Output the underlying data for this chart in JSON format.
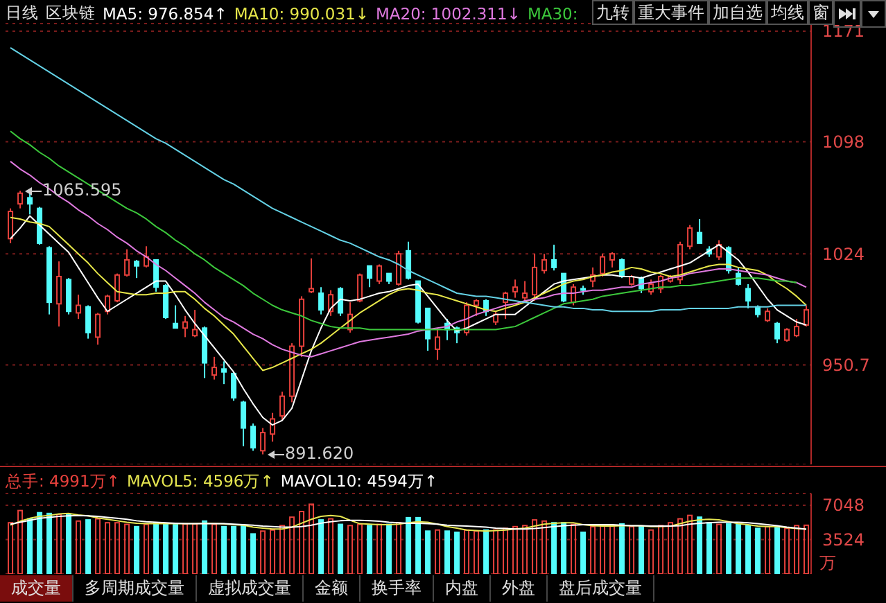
{
  "chart_data": [
    {
      "type": "candlestick",
      "title": "区块链",
      "subtitle": "日线",
      "categories": [
        null,
        null,
        null,
        null,
        null,
        null,
        null,
        null,
        null,
        null,
        null,
        null,
        null,
        null,
        null,
        null,
        null,
        null,
        null,
        null,
        null,
        null,
        null,
        null,
        null,
        null,
        null,
        null,
        null,
        null,
        null,
        null,
        null,
        null,
        null,
        null,
        null,
        null,
        null,
        null,
        null,
        null,
        null,
        null,
        null,
        null,
        null,
        null,
        null,
        null,
        null,
        null,
        null,
        null,
        null,
        null,
        null,
        null,
        null,
        null,
        null,
        null,
        null,
        null,
        null,
        null,
        null,
        null,
        null,
        null,
        null,
        null,
        null,
        null,
        null,
        null,
        null,
        null,
        null,
        null,
        null,
        null,
        null
      ],
      "ohlc": [
        [
          1034,
          1054,
          1031,
          1052
        ],
        [
          1057,
          1065.595,
          1054,
          1064
        ],
        [
          1061,
          1064,
          1050,
          1057
        ],
        [
          1054,
          1055,
          1030,
          1031
        ],
        [
          1028,
          1029,
          984,
          992
        ],
        [
          991,
          1019,
          976,
          1009
        ],
        [
          1007,
          1008,
          984,
          986
        ],
        [
          985,
          997,
          981,
          990
        ],
        [
          989,
          990,
          968,
          972
        ],
        [
          969,
          985,
          964,
          984
        ],
        [
          986,
          997,
          984,
          996
        ],
        [
          993,
          1011,
          992,
          1010
        ],
        [
          1010,
          1027,
          1009,
          1020
        ],
        [
          1019,
          1020,
          1008,
          1016
        ],
        [
          1016,
          1029,
          1015,
          1022
        ],
        [
          1020,
          1020,
          999,
          1002
        ],
        [
          1003,
          1004,
          981,
          982
        ],
        [
          978,
          990,
          975,
          975
        ],
        [
          975,
          983,
          969,
          979
        ],
        [
          970,
          987,
          969,
          974
        ],
        [
          975,
          976,
          942,
          952
        ],
        [
          944,
          956,
          941,
          949
        ],
        [
          948,
          953,
          938,
          946
        ],
        [
          945,
          946,
          927,
          929
        ],
        [
          926,
          927,
          897,
          909
        ],
        [
          910,
          912,
          894,
          896
        ],
        [
          894,
          909,
          891.62,
          906
        ],
        [
          905,
          919,
          900,
          915
        ],
        [
          917,
          933,
          914,
          930
        ],
        [
          930,
          965,
          926,
          963
        ],
        [
          963,
          996,
          956,
          994
        ],
        [
          999,
          1021,
          998,
          1001
        ],
        [
          998,
          1002,
          984,
          987
        ],
        [
          986,
          1000,
          983,
          997
        ],
        [
          1001,
          1002,
          983,
          985
        ],
        [
          974,
          992,
          972,
          984
        ],
        [
          993,
          1011,
          992,
          1010
        ],
        [
          1016,
          1016,
          1002,
          1008
        ],
        [
          1006,
          1017,
          1004,
          1016
        ],
        [
          1011,
          1011,
          1004,
          1006
        ],
        [
          1004,
          1026,
          1003,
          1024
        ],
        [
          1026,
          1032,
          1007,
          1008
        ],
        [
          1006,
          1006,
          978,
          979
        ],
        [
          988,
          988,
          960,
          968
        ],
        [
          961,
          975,
          954,
          969
        ],
        [
          978,
          981,
          967,
          974
        ],
        [
          975,
          976,
          965,
          972
        ],
        [
          972,
          992,
          970,
          990
        ],
        [
          990,
          994,
          983,
          993
        ],
        [
          993,
          994,
          983,
          986
        ],
        [
          979,
          986,
          977,
          984
        ],
        [
          992,
          999,
          981,
          998
        ],
        [
          999,
          1007,
          995,
          1002
        ],
        [
          995,
          1006,
          993,
          998
        ],
        [
          997,
          1024,
          993,
          1015
        ],
        [
          1013,
          1024,
          1011,
          1020
        ],
        [
          1020,
          1030,
          1013,
          1015
        ],
        [
          1011,
          1011,
          992,
          993
        ],
        [
          992,
          1004,
          990,
          1002
        ],
        [
          1001,
          1003,
          997,
          1000
        ],
        [
          1006,
          1015,
          1002,
          1010
        ],
        [
          1011,
          1024,
          1009,
          1022
        ],
        [
          1020,
          1025,
          1015,
          1024
        ],
        [
          1020,
          1021,
          1008,
          1009
        ],
        [
          1004,
          1010,
          1003,
          1009
        ],
        [
          1008,
          1009,
          998,
          1001
        ],
        [
          999,
          1007,
          997,
          1004
        ],
        [
          1001,
          1010,
          998,
          1009
        ],
        [
          1006,
          1010,
          1005,
          1009
        ],
        [
          1007,
          1032,
          1004,
          1030
        ],
        [
          1029,
          1043,
          1027,
          1041
        ],
        [
          1038,
          1047,
          1031,
          1031
        ],
        [
          1027,
          1029,
          1022,
          1024
        ],
        [
          1022,
          1033,
          1020,
          1030
        ],
        [
          1028,
          1029,
          1011,
          1013
        ],
        [
          1011,
          1015,
          1003,
          1004
        ],
        [
          1001,
          1004,
          988,
          993
        ],
        [
          989,
          990,
          982,
          984
        ],
        [
          980,
          988,
          979,
          986
        ],
        [
          978,
          979,
          965,
          968
        ],
        [
          967,
          975,
          966,
          974
        ],
        [
          970,
          981,
          969,
          976
        ],
        [
          977,
          990,
          976,
          987
        ]
      ],
      "colors": [
        "#e8413c",
        "#e8413c",
        "#54fcfc",
        "#54fcfc",
        "#54fcfc",
        "#e8413c",
        "#54fcfc",
        "#e8413c",
        "#54fcfc",
        "#e8413c",
        "#e8413c",
        "#e8413c",
        "#e8413c",
        "#54fcfc",
        "#e8413c",
        "#54fcfc",
        "#54fcfc",
        "#54fcfc",
        "#e8413c",
        "#e8413c",
        "#54fcfc",
        "#e8413c",
        "#54fcfc",
        "#54fcfc",
        "#54fcfc",
        "#54fcfc",
        "#e8413c",
        "#e8413c",
        "#e8413c",
        "#e8413c",
        "#e8413c",
        "#e8413c",
        "#54fcfc",
        "#e8413c",
        "#54fcfc",
        "#e8413c",
        "#e8413c",
        "#54fcfc",
        "#e8413c",
        "#54fcfc",
        "#e8413c",
        "#54fcfc",
        "#54fcfc",
        "#54fcfc",
        "#e8413c",
        "#54fcfc",
        "#54fcfc",
        "#e8413c",
        "#e8413c",
        "#54fcfc",
        "#e8413c",
        "#e8413c",
        "#e8413c",
        "#e8413c",
        "#e8413c",
        "#e8413c",
        "#54fcfc",
        "#54fcfc",
        "#e8413c",
        "#54fcfc",
        "#e8413c",
        "#e8413c",
        "#e8413c",
        "#54fcfc",
        "#e8413c",
        "#54fcfc",
        "#e8413c",
        "#e8413c",
        "#e8413c",
        "#e8413c",
        "#e8413c",
        "#54fcfc",
        "#54fcfc",
        "#e8413c",
        "#54fcfc",
        "#54fcfc",
        "#54fcfc",
        "#54fcfc",
        "#e8413c",
        "#54fcfc",
        "#e8413c",
        "#e8413c",
        "#e8413c"
      ],
      "series": [
        {
          "name": "MA5: 976.854↑",
          "type": "line",
          "color": "#ffffff",
          "values": [
            1034,
            1041,
            1049,
            1043,
            1037,
            1031,
            1025,
            1015,
            1005,
            995,
            986,
            990,
            994,
            998,
            1002,
            1006,
            1006,
            997,
            987,
            978,
            970,
            962,
            954,
            946,
            935,
            925,
            916,
            911,
            914,
            922,
            941,
            960,
            975,
            988,
            994,
            993,
            994,
            996,
            998,
            999,
            1001,
            1003,
            1004,
            996,
            988,
            980,
            973,
            975,
            978,
            981,
            984,
            984,
            984,
            989,
            994,
            999,
            1004,
            1006,
            1007,
            1008,
            1009,
            1010,
            1010,
            1009,
            1009,
            1008,
            1010,
            1012,
            1014,
            1016,
            1018,
            1022,
            1026,
            1030,
            1025,
            1020,
            1012,
            1003,
            994,
            987,
            983,
            979,
            977
          ]
        },
        {
          "name": "MA10: 990.031↓",
          "type": "line",
          "color": "#e8e84a",
          "values": [
            1048,
            1047,
            1045,
            1044,
            1042,
            1036,
            1030,
            1024,
            1018,
            1011,
            1005,
            999,
            998,
            997,
            997,
            998,
            998,
            999,
            999,
            994,
            988,
            983,
            977,
            971,
            963,
            955,
            947,
            949,
            952,
            955,
            958,
            961,
            965,
            970,
            975,
            980,
            985,
            989,
            993,
            997,
            1000,
            1001,
            1000,
            998,
            997,
            995,
            993,
            991,
            989,
            987,
            986,
            988,
            990,
            992,
            995,
            998,
            1001,
            1004,
            1006,
            1007,
            1009,
            1010,
            1012,
            1013,
            1015,
            1014,
            1012,
            1011,
            1009,
            1010,
            1012,
            1014,
            1016,
            1017,
            1017,
            1015,
            1014,
            1013,
            1010,
            1005,
            1001,
            996,
            990
          ]
        },
        {
          "name": "MA20: 1002.311↓",
          "type": "line",
          "color": "#e07ae0",
          "values": [
            1085,
            1080,
            1076,
            1071,
            1067,
            1062,
            1058,
            1053,
            1049,
            1044,
            1040,
            1035,
            1031,
            1026,
            1022,
            1017,
            1013,
            1008,
            1003,
            998,
            992,
            987,
            982,
            979,
            975,
            971,
            968,
            964,
            961,
            959,
            957,
            956,
            958,
            960,
            962,
            964,
            966,
            967,
            968,
            969,
            970,
            971,
            973,
            974,
            975,
            976,
            979,
            981,
            984,
            986,
            988,
            990,
            991,
            993,
            994,
            995,
            997,
            998,
            998,
            999,
            1000,
            1000,
            1001,
            1002,
            1002,
            1004,
            1005,
            1006,
            1008,
            1009,
            1011,
            1012,
            1013,
            1014,
            1014,
            1013,
            1012,
            1011,
            1010,
            1008,
            1006,
            1005,
            1002
          ]
        },
        {
          "name": "MA30:",
          "type": "line",
          "color": "#3cc83c",
          "values": [
            1105,
            1100,
            1096,
            1091,
            1087,
            1082,
            1078,
            1074,
            1070,
            1066,
            1062,
            1058,
            1054,
            1051,
            1047,
            1042,
            1038,
            1033,
            1029,
            1024,
            1020,
            1015,
            1011,
            1007,
            1003,
            998,
            994,
            990,
            987,
            985,
            983,
            980,
            978,
            976,
            975,
            975,
            975,
            974,
            974,
            974,
            974,
            974,
            974,
            974,
            974,
            974,
            974,
            974,
            974,
            974,
            974,
            975,
            976,
            979,
            982,
            985,
            988,
            991,
            992,
            993,
            994,
            996,
            997,
            998,
            999,
            1000,
            1001,
            1002,
            1002,
            1003,
            1003,
            1004,
            1005,
            1006,
            1007,
            1008,
            1008,
            1008,
            1007,
            1006,
            1006,
            1005,
            null
          ]
        },
        {
          "type": "line",
          "color": "#64d2e6",
          "values": [
            1160,
            1156,
            1152,
            1148,
            1144,
            1140,
            1136,
            1132,
            1128,
            1124,
            1120,
            1116,
            1112,
            1108,
            1104,
            1100,
            1097,
            1093,
            1089,
            1085,
            1081,
            1077,
            1073,
            1070,
            1066,
            1062,
            1058,
            1054,
            1051,
            1048,
            1045,
            1042,
            1039,
            1036,
            1033,
            1031,
            1028,
            1025,
            1022,
            1020,
            1017,
            1013,
            1010,
            1007,
            1004,
            1001,
            998,
            997,
            996,
            996,
            995,
            994,
            993,
            992,
            991,
            990,
            989,
            989,
            988,
            988,
            987,
            987,
            986,
            986,
            986,
            986,
            986,
            987,
            987,
            987,
            988,
            988,
            988,
            988,
            988,
            989,
            989,
            989,
            989,
            990,
            990,
            990,
            990
          ]
        }
      ],
      "ylim": [
        885,
        1176
      ],
      "yticks": [
        950.7,
        1024,
        1098,
        1171
      ],
      "grid": "y",
      "legend": "top left",
      "tick_labels": "y",
      "annotations": [
        "1065.595",
        "891.620",
        "九转",
        "重大事件",
        "加自选",
        "均线",
        "窗"
      ]
    },
    {
      "type": "bar",
      "ylabel": "万",
      "categories": [
        null,
        null,
        null,
        null,
        null,
        null,
        null,
        null,
        null,
        null,
        null,
        null,
        null,
        null,
        null,
        null,
        null,
        null,
        null,
        null,
        null,
        null,
        null,
        null,
        null,
        null,
        null,
        null,
        null,
        null,
        null,
        null,
        null,
        null,
        null,
        null,
        null,
        null,
        null,
        null,
        null,
        null,
        null,
        null,
        null,
        null,
        null,
        null,
        null,
        null,
        null,
        null,
        null,
        null,
        null,
        null,
        null,
        null,
        null,
        null,
        null,
        null,
        null,
        null,
        null,
        null,
        null,
        null,
        null,
        null,
        null,
        null,
        null,
        null,
        null,
        null,
        null,
        null,
        null,
        null,
        null,
        null,
        null
      ],
      "series": [
        {
          "name": "总手: 4991万↑",
          "type": "bar",
          "colors": [
            "#e8413c",
            "#e8413c",
            "#54fcfc",
            "#54fcfc",
            "#54fcfc",
            "#e8413c",
            "#54fcfc",
            "#e8413c",
            "#54fcfc",
            "#e8413c",
            "#e8413c",
            "#e8413c",
            "#e8413c",
            "#54fcfc",
            "#e8413c",
            "#54fcfc",
            "#54fcfc",
            "#54fcfc",
            "#e8413c",
            "#e8413c",
            "#54fcfc",
            "#e8413c",
            "#54fcfc",
            "#54fcfc",
            "#54fcfc",
            "#54fcfc",
            "#e8413c",
            "#e8413c",
            "#e8413c",
            "#e8413c",
            "#e8413c",
            "#e8413c",
            "#54fcfc",
            "#e8413c",
            "#54fcfc",
            "#e8413c",
            "#e8413c",
            "#54fcfc",
            "#e8413c",
            "#54fcfc",
            "#e8413c",
            "#54fcfc",
            "#54fcfc",
            "#54fcfc",
            "#e8413c",
            "#54fcfc",
            "#54fcfc",
            "#e8413c",
            "#e8413c",
            "#54fcfc",
            "#e8413c",
            "#e8413c",
            "#e8413c",
            "#e8413c",
            "#e8413c",
            "#e8413c",
            "#54fcfc",
            "#54fcfc",
            "#e8413c",
            "#54fcfc",
            "#e8413c",
            "#e8413c",
            "#e8413c",
            "#54fcfc",
            "#e8413c",
            "#54fcfc",
            "#e8413c",
            "#e8413c",
            "#e8413c",
            "#e8413c",
            "#e8413c",
            "#54fcfc",
            "#54fcfc",
            "#e8413c",
            "#54fcfc",
            "#54fcfc",
            "#54fcfc",
            "#54fcfc",
            "#e8413c",
            "#54fcfc",
            "#e8413c",
            "#e8413c",
            "#e8413c"
          ],
          "values": [
            5250,
            6500,
            5650,
            6280,
            6200,
            6110,
            6110,
            5420,
            5540,
            5650,
            5250,
            5250,
            5080,
            4850,
            5080,
            5250,
            5190,
            5080,
            5130,
            5130,
            5420,
            5080,
            4850,
            4850,
            4960,
            4100,
            4390,
            4500,
            4960,
            5820,
            6400,
            7150,
            5540,
            5650,
            5080,
            4960,
            5080,
            4960,
            5080,
            5080,
            5250,
            5770,
            5770,
            4390,
            4500,
            4390,
            4270,
            4500,
            4390,
            4500,
            4500,
            4670,
            4850,
            4960,
            5540,
            5420,
            5250,
            5250,
            5080,
            4270,
            4850,
            4960,
            4960,
            5130,
            4850,
            4850,
            4500,
            4960,
            5250,
            5650,
            6000,
            5820,
            5250,
            5080,
            5130,
            5080,
            4960,
            4670,
            4850,
            4850,
            4670,
            4960,
            4991
          ]
        },
        {
          "name": "MAVOL5: 4596万↑",
          "type": "line",
          "color": "#e6e650",
          "values": [
            5000,
            5400,
            5700,
            5900,
            6000,
            6150,
            6200,
            6050,
            5950,
            5750,
            5600,
            5450,
            5300,
            5200,
            5150,
            5150,
            5150,
            5150,
            5150,
            5150,
            5200,
            5180,
            5130,
            5050,
            5000,
            4800,
            4700,
            4600,
            4600,
            4800,
            5200,
            5600,
            5900,
            6000,
            5900,
            5500,
            5150,
            5100,
            5050,
            5050,
            5100,
            5250,
            5350,
            5300,
            5100,
            4850,
            4700,
            4500,
            4450,
            4400,
            4450,
            4500,
            4600,
            4700,
            4900,
            5100,
            5200,
            5250,
            5250,
            5050,
            4950,
            4900,
            4900,
            4950,
            4950,
            4950,
            4850,
            4850,
            4900,
            5150,
            5400,
            5550,
            5600,
            5550,
            5350,
            5150,
            5050,
            4900,
            4850,
            4850,
            4750,
            4650,
            4596
          ]
        },
        {
          "name": "MAVOL10: 4594万↑",
          "type": "line",
          "color": "#ffffff",
          "values": [
            5100,
            5300,
            5500,
            5700,
            5800,
            5900,
            5950,
            6000,
            5950,
            5900,
            5800,
            5700,
            5600,
            5450,
            5350,
            5300,
            5250,
            5200,
            5150,
            5150,
            5150,
            5150,
            5150,
            5100,
            5050,
            5000,
            4900,
            4850,
            4800,
            4800,
            4850,
            5000,
            5200,
            5350,
            5450,
            5500,
            5500,
            5450,
            5400,
            5300,
            5250,
            5200,
            5200,
            5150,
            5100,
            5000,
            4950,
            4900,
            4850,
            4800,
            4700,
            4650,
            4600,
            4600,
            4650,
            4750,
            4850,
            4950,
            5000,
            5050,
            5050,
            5050,
            5050,
            5000,
            4950,
            4950,
            4900,
            4900,
            4900,
            4950,
            5100,
            5200,
            5250,
            5300,
            5300,
            5300,
            5250,
            5150,
            5050,
            4950,
            4800,
            4700,
            4594
          ]
        }
      ],
      "ylim": [
        0,
        8250
      ],
      "yticks": [
        3524,
        7048
      ],
      "grid": "y",
      "legend": "top left",
      "tick_labels": "y",
      "annotations": [
        "成交量",
        "多周期成交量",
        "虚拟成交量",
        "金额",
        "换手率",
        "内盘",
        "外盘",
        "盘后成交量"
      ]
    }
  ]
}
